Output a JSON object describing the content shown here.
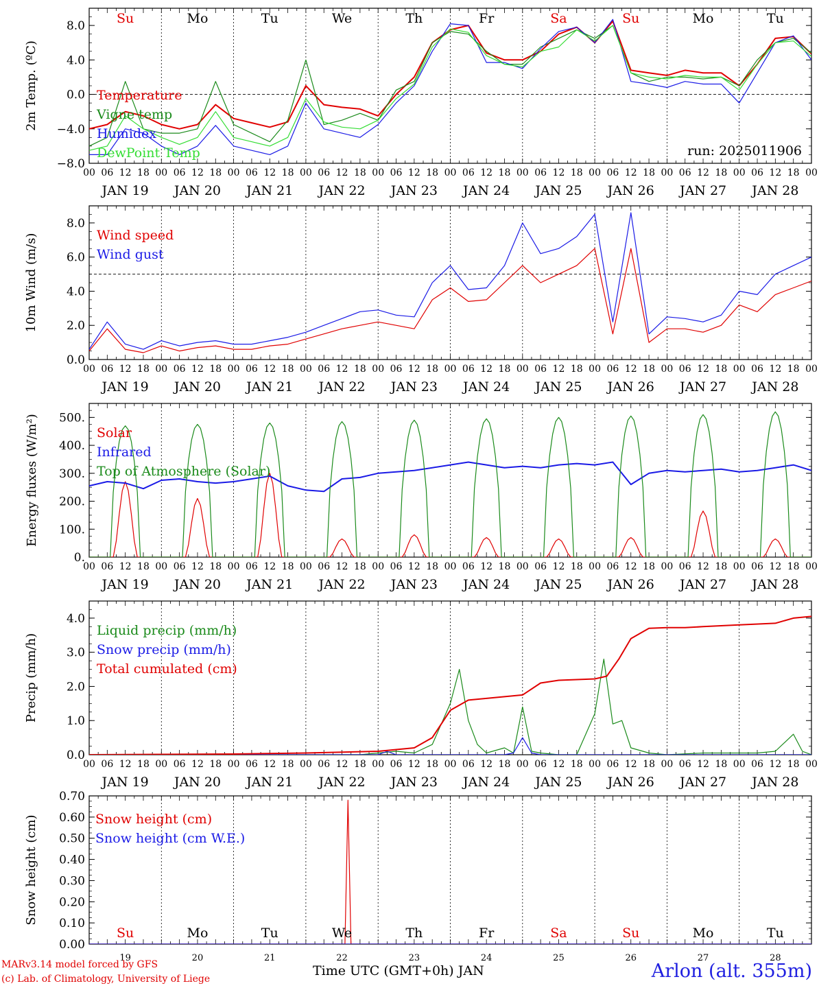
{
  "colors": {
    "red": "#e00000",
    "green": "#1a8a1a",
    "blue": "#1a1ae6",
    "lime": "#33dd33",
    "black": "#000000"
  },
  "days": [
    "JAN 19",
    "JAN 20",
    "JAN 21",
    "JAN 22",
    "JAN 23",
    "JAN 24",
    "JAN 25",
    "JAN 26",
    "JAN 27",
    "JAN 28"
  ],
  "weekdays": [
    "Su",
    "Mo",
    "Tu",
    "We",
    "Th",
    "Fr",
    "Sa",
    "Su",
    "Mo",
    "Tu"
  ],
  "weekday_colors": [
    "red",
    "black",
    "black",
    "black",
    "black",
    "black",
    "red",
    "red",
    "black",
    "black"
  ],
  "hour_ticks": [
    "00",
    "06",
    "12",
    "18"
  ],
  "bottom_days": [
    "19",
    "20",
    "21",
    "22",
    "23",
    "24",
    "25",
    "26",
    "27",
    "28"
  ],
  "footer": {
    "credit_line1": "MARv3.14 model forced by GFS",
    "credit_line2": "(c) Lab. of Climatology, University of Liege",
    "x_title": "Time UTC (GMT+0h) JAN",
    "station": "Arlon (alt. 355m)"
  },
  "chart_data": [
    {
      "type": "line",
      "ylabel": "2m Temp. (ºC)",
      "ylim": [
        -8,
        10
      ],
      "yticks": [
        -8,
        -4,
        0,
        4,
        8
      ],
      "ytick_labels": [
        "−8.0",
        "−4.0",
        "0.0",
        "4.0",
        "8.0"
      ],
      "ref_line": 0,
      "annotation": "run: 2025011906",
      "hours": [
        0,
        6,
        12,
        18,
        24,
        30,
        36,
        42,
        48,
        54,
        60,
        66,
        72,
        78,
        84,
        90,
        96,
        102,
        108,
        114,
        120,
        126,
        132,
        138,
        144,
        150,
        156,
        162,
        168,
        174,
        180,
        186,
        192,
        198,
        204,
        210,
        216,
        222,
        228,
        234,
        240
      ],
      "series": [
        {
          "name": "Temperature",
          "color": "red",
          "values": [
            -4,
            -3.5,
            -2,
            -2.5,
            -3.5,
            -4,
            -3.5,
            -1.2,
            -2.8,
            -3.3,
            -3.8,
            -3.2,
            1,
            -1.2,
            -1.5,
            -1.7,
            -2.5,
            0,
            2,
            6,
            7.5,
            8,
            4.8,
            4,
            4,
            5,
            7,
            7.8,
            6,
            8.5,
            2.8,
            2.5,
            2.2,
            2.8,
            2.5,
            2.5,
            1,
            3.5,
            6.5,
            6.7,
            4.7
          ]
        },
        {
          "name": "Vigne temp",
          "color": "green",
          "values": [
            -6,
            -5,
            1.5,
            -4,
            -4.5,
            -4.5,
            -4,
            1.5,
            -3.5,
            -4.5,
            -5.5,
            -3,
            4,
            -3.5,
            -3,
            -2.2,
            -3,
            0.5,
            1.5,
            6,
            7.3,
            7,
            5,
            3.5,
            3.5,
            5.5,
            6.5,
            7.5,
            6.5,
            8,
            2.5,
            1.5,
            2,
            2,
            1.8,
            2,
            1,
            4,
            6,
            6.5,
            4.8
          ]
        },
        {
          "name": "Humidex",
          "color": "blue",
          "values": [
            -7,
            -7,
            -4,
            -4.5,
            -6,
            -7,
            -6,
            -3.6,
            -6,
            -6.5,
            -7,
            -6,
            -1,
            -4,
            -4.5,
            -5,
            -3.5,
            -1,
            1,
            5,
            8.2,
            8,
            3.7,
            3.7,
            3,
            5.3,
            7.3,
            7.8,
            6,
            8.7,
            1.5,
            1.2,
            0.8,
            1.5,
            1.2,
            1.2,
            -1,
            2.5,
            6,
            6.8,
            4
          ]
        },
        {
          "name": "DewPoint Temp",
          "color": "lime",
          "values": [
            -6.5,
            -6,
            -2.5,
            -4,
            -5,
            -5.8,
            -5,
            -2,
            -5,
            -5.5,
            -6,
            -5,
            -0.5,
            -3.2,
            -3.8,
            -4,
            -3,
            -0.5,
            1.2,
            5.5,
            7.6,
            7.2,
            4.5,
            3.5,
            3.2,
            5,
            5.5,
            7.5,
            6.2,
            8,
            2.5,
            2,
            1.8,
            2.2,
            2,
            2,
            0.5,
            3.5,
            6,
            6.2,
            4.4
          ]
        }
      ]
    },
    {
      "type": "line",
      "ylabel": "10m Wind (m/s)",
      "ylim": [
        0,
        9
      ],
      "yticks": [
        0,
        2,
        4,
        6,
        8
      ],
      "ytick_labels": [
        "0.0",
        "2.0",
        "4.0",
        "6.0",
        "8.0"
      ],
      "ref_line": 5,
      "hours": [
        0,
        6,
        12,
        18,
        24,
        30,
        36,
        42,
        48,
        54,
        60,
        66,
        72,
        78,
        84,
        90,
        96,
        102,
        108,
        114,
        120,
        126,
        132,
        138,
        144,
        150,
        156,
        162,
        168,
        174,
        180,
        186,
        192,
        198,
        204,
        210,
        216,
        222,
        228,
        234,
        240
      ],
      "series": [
        {
          "name": "Wind speed",
          "color": "red",
          "values": [
            0.5,
            1.8,
            0.6,
            0.4,
            0.8,
            0.5,
            0.7,
            0.8,
            0.6,
            0.6,
            0.8,
            0.9,
            1.2,
            1.5,
            1.8,
            2.0,
            2.2,
            2.0,
            1.8,
            3.5,
            4.2,
            3.4,
            3.5,
            4.5,
            5.5,
            4.5,
            5.0,
            5.5,
            6.5,
            1.5,
            6.5,
            1.0,
            1.8,
            1.8,
            1.6,
            2.0,
            3.2,
            2.8,
            3.8,
            4.2,
            4.6
          ]
        },
        {
          "name": "Wind gust",
          "color": "blue",
          "values": [
            0.6,
            2.2,
            0.9,
            0.6,
            1.1,
            0.8,
            1.0,
            1.1,
            0.9,
            0.9,
            1.1,
            1.3,
            1.6,
            2.0,
            2.4,
            2.8,
            2.9,
            2.6,
            2.5,
            4.5,
            5.5,
            4.1,
            4.2,
            5.5,
            8.0,
            6.2,
            6.5,
            7.2,
            8.5,
            2.2,
            8.6,
            1.5,
            2.5,
            2.4,
            2.2,
            2.6,
            4.0,
            3.8,
            5.0,
            5.5,
            6.0
          ]
        }
      ]
    },
    {
      "type": "line",
      "ylabel": "Energy fluxes (W/m²)",
      "ylim": [
        0,
        550
      ],
      "yticks": [
        0,
        100,
        200,
        300,
        400,
        500
      ],
      "ytick_labels": [
        "0.",
        "100.",
        "200.",
        "300.",
        "400.",
        "500."
      ],
      "day_peaks": {
        "solar": [
          270,
          210,
          300,
          65,
          80,
          70,
          65,
          70,
          165,
          65
        ],
        "toa": [
          470,
          475,
          480,
          485,
          490,
          495,
          500,
          505,
          510,
          520
        ]
      },
      "series": [
        {
          "name": "Solar",
          "color": "red"
        },
        {
          "name": "Infrared",
          "color": "blue",
          "hours": [
            0,
            6,
            12,
            18,
            24,
            30,
            36,
            42,
            48,
            54,
            60,
            66,
            72,
            78,
            84,
            90,
            96,
            102,
            108,
            114,
            120,
            126,
            132,
            138,
            144,
            150,
            156,
            162,
            168,
            174,
            180,
            186,
            192,
            198,
            204,
            210,
            216,
            222,
            228,
            234,
            240
          ],
          "values": [
            255,
            270,
            265,
            245,
            275,
            280,
            270,
            265,
            270,
            280,
            290,
            255,
            240,
            235,
            280,
            285,
            300,
            305,
            310,
            320,
            330,
            340,
            330,
            320,
            325,
            320,
            330,
            335,
            330,
            340,
            260,
            300,
            310,
            305,
            310,
            315,
            305,
            310,
            320,
            330,
            310
          ]
        },
        {
          "name": "Top of Atmosphere (Solar)",
          "color": "green"
        }
      ]
    },
    {
      "type": "line",
      "ylabel": "Precip (mm/h)",
      "ylim": [
        0,
        4.5
      ],
      "yticks": [
        0,
        1,
        2,
        3,
        4
      ],
      "ytick_labels": [
        "0.0",
        "1.0",
        "2.0",
        "3.0",
        "4.0"
      ],
      "series": [
        {
          "name": "Liquid precip (mm/h)",
          "color": "green",
          "hours": [
            0,
            60,
            84,
            90,
            96,
            102,
            108,
            114,
            120,
            123,
            126,
            129,
            132,
            138,
            141,
            144,
            147,
            150,
            156,
            162,
            168,
            171,
            174,
            177,
            180,
            186,
            192,
            204,
            216,
            222,
            228,
            234,
            237,
            240
          ],
          "values": [
            0,
            0,
            0,
            0,
            0.05,
            0.1,
            0.05,
            0.3,
            1.5,
            2.5,
            1.0,
            0.3,
            0.05,
            0.2,
            0.05,
            1.4,
            0.1,
            0.05,
            0,
            0,
            1.2,
            2.8,
            0.9,
            1.0,
            0.2,
            0.05,
            0,
            0.05,
            0.05,
            0.05,
            0.1,
            0.6,
            0.1,
            0
          ]
        },
        {
          "name": "Snow precip (mm/h)",
          "color": "blue",
          "hours": [
            0,
            96,
            99,
            102,
            108,
            138,
            141,
            144,
            147,
            150,
            240
          ],
          "values": [
            0,
            0,
            0.1,
            0,
            0,
            0,
            0.05,
            0.5,
            0.05,
            0,
            0
          ]
        },
        {
          "name": "Total cumulated (cm)",
          "color": "red",
          "hours": [
            0,
            48,
            72,
            96,
            108,
            114,
            120,
            126,
            132,
            138,
            144,
            150,
            156,
            162,
            168,
            172,
            176,
            180,
            186,
            192,
            198,
            204,
            216,
            228,
            234,
            240
          ],
          "values": [
            0,
            0.02,
            0.05,
            0.1,
            0.2,
            0.5,
            1.3,
            1.6,
            1.65,
            1.7,
            1.75,
            2.1,
            2.18,
            2.2,
            2.22,
            2.3,
            2.8,
            3.4,
            3.7,
            3.72,
            3.72,
            3.75,
            3.8,
            3.85,
            4.0,
            4.05
          ]
        }
      ]
    },
    {
      "type": "line",
      "ylabel": "Snow height (cm)",
      "ylim": [
        0,
        0.7
      ],
      "yticks": [
        0,
        0.1,
        0.2,
        0.3,
        0.4,
        0.5,
        0.6,
        0.7
      ],
      "ytick_labels": [
        "0.00",
        "0.10",
        "0.20",
        "0.30",
        "0.40",
        "0.50",
        "0.60",
        "0.70"
      ],
      "series": [
        {
          "name": "Snow height (cm)",
          "color": "red",
          "hours": [
            0,
            84,
            85,
            86,
            87,
            240
          ],
          "values": [
            0,
            0,
            0,
            0.68,
            0,
            0
          ]
        },
        {
          "name": "Snow height (cm W.E.)",
          "color": "blue",
          "hours": [
            0,
            240
          ],
          "values": [
            0,
            0
          ]
        }
      ]
    }
  ]
}
